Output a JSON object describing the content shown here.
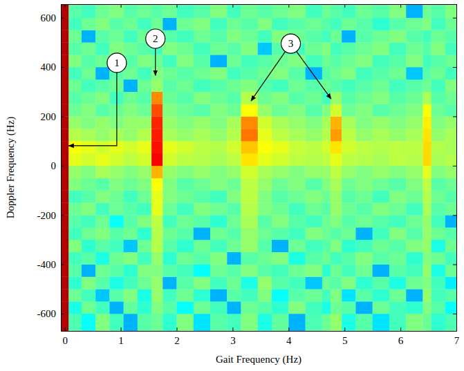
{
  "chart_data": {
    "type": "heatmap",
    "x_label": "Gait Frequency (Hz)",
    "y_label": "Doppler Frequency (Hz)",
    "xlim": [
      -0.07,
      7.0
    ],
    "ylim": [
      -670,
      655
    ],
    "xticks": [
      0,
      1,
      2,
      3,
      4,
      5,
      6,
      7
    ],
    "yticks": [
      -600,
      -400,
      -200,
      0,
      200,
      400,
      600
    ],
    "color_range": [
      0,
      100
    ],
    "x_edges": [
      -0.07,
      0.07,
      0.3,
      0.55,
      0.8,
      1.05,
      1.3,
      1.55,
      1.75,
      2.0,
      2.3,
      2.6,
      2.9,
      3.15,
      3.45,
      3.7,
      4.0,
      4.3,
      4.6,
      4.75,
      4.95,
      5.2,
      5.5,
      5.8,
      6.1,
      6.4,
      6.55,
      6.8,
      7.0
    ],
    "y_edges": [
      -670,
      -600,
      -550,
      -500,
      -450,
      -400,
      -350,
      -300,
      -250,
      -200,
      -150,
      -100,
      -50,
      0,
      50,
      100,
      150,
      200,
      250,
      300,
      350,
      400,
      450,
      500,
      550,
      600,
      655
    ],
    "values": [
      [
        95,
        45,
        38,
        50,
        44,
        30,
        46,
        48,
        42,
        50,
        35,
        46,
        44,
        50,
        40,
        47,
        30,
        45,
        48,
        52,
        40,
        46,
        35,
        44,
        50,
        48,
        42,
        45
      ],
      [
        95,
        40,
        48,
        44,
        30,
        47,
        42,
        50,
        46,
        38,
        48,
        44,
        30,
        48,
        46,
        42,
        50,
        44,
        40,
        48,
        46,
        30,
        48,
        44,
        42,
        50,
        46,
        38
      ],
      [
        95,
        48,
        44,
        32,
        46,
        50,
        40,
        52,
        44,
        48,
        42,
        30,
        46,
        44,
        50,
        38,
        46,
        48,
        44,
        50,
        35,
        46,
        42,
        48,
        30,
        52,
        44,
        46
      ],
      [
        95,
        42,
        50,
        46,
        40,
        44,
        48,
        52,
        30,
        46,
        50,
        44,
        48,
        40,
        52,
        46,
        44,
        32,
        48,
        46,
        50,
        42,
        46,
        40,
        48,
        50,
        44,
        36
      ],
      [
        95,
        46,
        30,
        48,
        46,
        42,
        50,
        50,
        46,
        44,
        38,
        48,
        46,
        50,
        46,
        44,
        48,
        50,
        42,
        48,
        44,
        48,
        30,
        46,
        44,
        52,
        40,
        48
      ],
      [
        95,
        44,
        46,
        40,
        48,
        50,
        44,
        52,
        42,
        48,
        46,
        50,
        30,
        46,
        48,
        50,
        40,
        46,
        48,
        44,
        46,
        50,
        46,
        48,
        42,
        50,
        48,
        44
      ],
      [
        95,
        50,
        42,
        46,
        44,
        32,
        48,
        55,
        46,
        42,
        48,
        44,
        48,
        52,
        46,
        30,
        48,
        44,
        46,
        50,
        42,
        44,
        48,
        46,
        50,
        52,
        40,
        48
      ],
      [
        95,
        44,
        48,
        50,
        46,
        48,
        42,
        55,
        48,
        46,
        30,
        48,
        46,
        52,
        48,
        46,
        44,
        50,
        48,
        46,
        48,
        30,
        44,
        50,
        46,
        52,
        48,
        46
      ],
      [
        95,
        46,
        44,
        48,
        38,
        46,
        50,
        56,
        44,
        48,
        46,
        42,
        48,
        54,
        46,
        50,
        46,
        44,
        48,
        50,
        46,
        48,
        46,
        44,
        48,
        52,
        44,
        30
      ],
      [
        95,
        48,
        50,
        44,
        48,
        46,
        44,
        60,
        48,
        44,
        50,
        48,
        46,
        55,
        50,
        48,
        44,
        48,
        46,
        52,
        48,
        46,
        50,
        48,
        44,
        54,
        46,
        48
      ],
      [
        95,
        44,
        46,
        50,
        48,
        44,
        48,
        60,
        50,
        48,
        46,
        44,
        50,
        56,
        50,
        46,
        48,
        50,
        48,
        52,
        46,
        48,
        44,
        50,
        48,
        55,
        48,
        46
      ],
      [
        95,
        50,
        48,
        46,
        50,
        48,
        50,
        62,
        50,
        46,
        48,
        50,
        48,
        56,
        52,
        48,
        50,
        46,
        50,
        54,
        48,
        50,
        48,
        46,
        50,
        56,
        46,
        48
      ],
      [
        95,
        52,
        50,
        54,
        52,
        50,
        52,
        70,
        52,
        50,
        52,
        50,
        52,
        58,
        54,
        52,
        50,
        52,
        52,
        56,
        52,
        50,
        52,
        50,
        52,
        60,
        50,
        52
      ],
      [
        95,
        60,
        58,
        60,
        58,
        56,
        58,
        88,
        58,
        56,
        55,
        54,
        56,
        65,
        60,
        58,
        56,
        55,
        56,
        60,
        56,
        55,
        54,
        56,
        55,
        66,
        54,
        55
      ],
      [
        95,
        62,
        60,
        58,
        60,
        58,
        60,
        86,
        60,
        58,
        56,
        55,
        58,
        68,
        62,
        60,
        57,
        56,
        58,
        65,
        58,
        56,
        55,
        56,
        56,
        66,
        55,
        54
      ],
      [
        95,
        55,
        54,
        52,
        54,
        52,
        55,
        85,
        54,
        52,
        54,
        52,
        55,
        76,
        60,
        56,
        54,
        52,
        55,
        72,
        56,
        52,
        54,
        52,
        54,
        65,
        52,
        54
      ],
      [
        95,
        52,
        50,
        52,
        50,
        52,
        52,
        84,
        52,
        50,
        52,
        50,
        54,
        74,
        58,
        54,
        52,
        50,
        54,
        70,
        54,
        50,
        52,
        50,
        52,
        64,
        50,
        52
      ],
      [
        95,
        48,
        50,
        46,
        48,
        50,
        48,
        80,
        50,
        48,
        46,
        50,
        48,
        62,
        52,
        48,
        50,
        46,
        50,
        58,
        48,
        50,
        46,
        48,
        50,
        62,
        48,
        46
      ],
      [
        95,
        46,
        48,
        50,
        44,
        48,
        46,
        74,
        48,
        46,
        50,
        48,
        46,
        55,
        48,
        50,
        46,
        48,
        44,
        52,
        46,
        48,
        50,
        46,
        48,
        54,
        46,
        48
      ],
      [
        95,
        48,
        44,
        46,
        48,
        30,
        48,
        52,
        46,
        48,
        44,
        46,
        48,
        50,
        46,
        44,
        48,
        46,
        48,
        46,
        44,
        46,
        48,
        44,
        46,
        48,
        44,
        50
      ],
      [
        95,
        44,
        48,
        30,
        46,
        48,
        44,
        50,
        48,
        46,
        48,
        50,
        44,
        46,
        48,
        50,
        46,
        30,
        46,
        48,
        50,
        44,
        46,
        48,
        32,
        46,
        48,
        44
      ],
      [
        95,
        50,
        46,
        48,
        44,
        46,
        50,
        48,
        44,
        50,
        46,
        30,
        48,
        44,
        46,
        48,
        50,
        44,
        48,
        46,
        48,
        50,
        44,
        46,
        50,
        44,
        46,
        48
      ],
      [
        95,
        46,
        48,
        44,
        50,
        48,
        46,
        44,
        50,
        48,
        44,
        48,
        46,
        50,
        32,
        46,
        44,
        48,
        50,
        44,
        46,
        48,
        50,
        44,
        48,
        46,
        50,
        44
      ],
      [
        95,
        48,
        30,
        46,
        48,
        44,
        48,
        46,
        46,
        44,
        48,
        46,
        50,
        48,
        44,
        50,
        48,
        46,
        44,
        48,
        30,
        46,
        48,
        50,
        46,
        44,
        48,
        46
      ],
      [
        95,
        44,
        48,
        50,
        46,
        48,
        44,
        48,
        30,
        48,
        50,
        44,
        48,
        46,
        50,
        44,
        46,
        48,
        46,
        44,
        48,
        46,
        42,
        46,
        48,
        50,
        44,
        48
      ],
      [
        95,
        46,
        44,
        48,
        50,
        46,
        48,
        46,
        48,
        44,
        46,
        50,
        44,
        48,
        46,
        48,
        50,
        44,
        48,
        46,
        44,
        48,
        46,
        50,
        30,
        48,
        46,
        50
      ]
    ],
    "annotations": [
      {
        "text": "1",
        "x": 0.93,
        "y": 417,
        "arrows": [
          [
            [
              0.93,
              417
            ],
            [
              0.93,
              81
            ],
            [
              0.07,
              81
            ]
          ]
        ]
      },
      {
        "text": "2",
        "x": 1.62,
        "y": 515,
        "arrows": [
          [
            [
              1.62,
              515
            ],
            [
              1.62,
              366
            ]
          ]
        ]
      },
      {
        "text": "3",
        "x": 4.04,
        "y": 495,
        "arrows": [
          [
            [
              4.04,
              495
            ],
            [
              3.33,
              263
            ]
          ],
          [
            [
              4.04,
              495
            ],
            [
              4.76,
              271
            ]
          ]
        ]
      }
    ]
  }
}
